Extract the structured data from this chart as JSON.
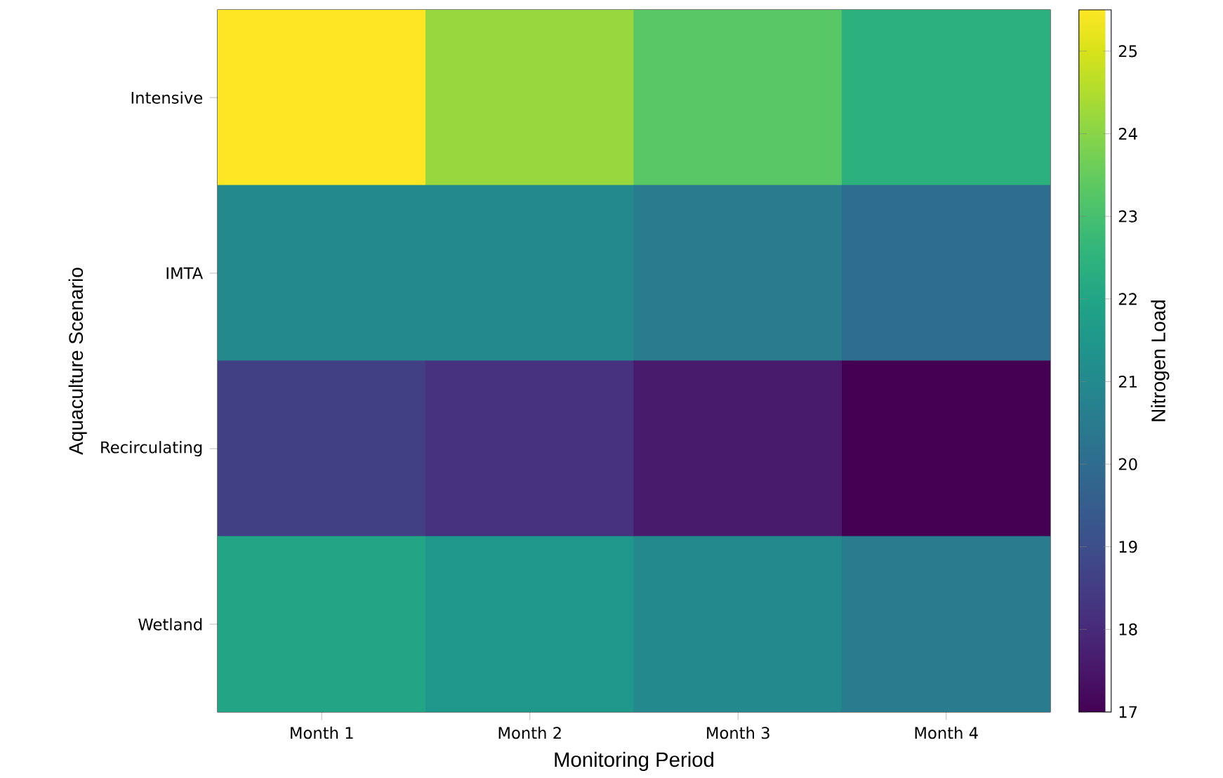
{
  "chart_data": {
    "type": "heatmap",
    "xlabel": "Monitoring Period",
    "ylabel": "Aquaculture Scenario",
    "clabel": "Nitrogen Load",
    "categories": [
      "Month 1",
      "Month 2",
      "Month 3",
      "Month 4"
    ],
    "y_categories": [
      "Intensive",
      "IMTA",
      "Recirculating",
      "Wetland"
    ],
    "cells": [
      [
        25.5,
        24.2,
        23.3,
        22.4
      ],
      [
        21.0,
        21.0,
        20.5,
        20.0
      ],
      [
        18.6,
        18.2,
        17.6,
        17.0
      ],
      [
        22.0,
        21.5,
        21.0,
        20.5
      ]
    ],
    "clim": [
      17,
      25.5
    ],
    "cticks": [
      17,
      18,
      19,
      20,
      21,
      22,
      23,
      24,
      25
    ]
  }
}
